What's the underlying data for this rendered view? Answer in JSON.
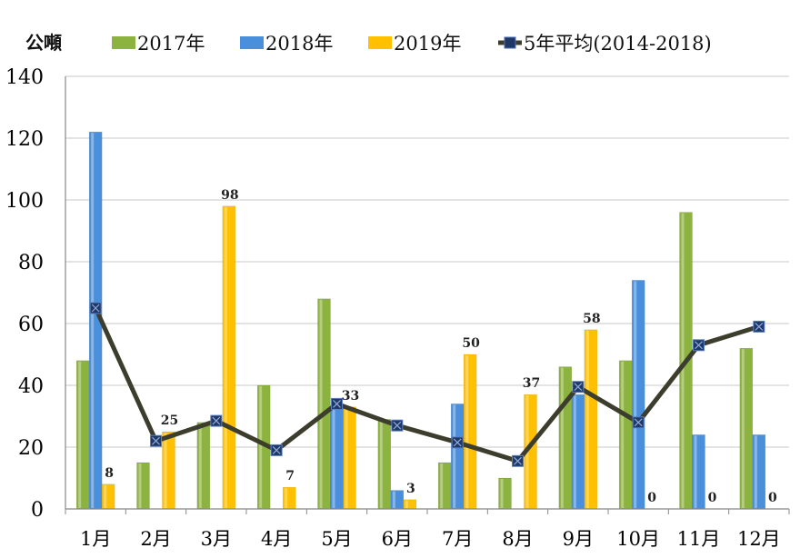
{
  "chart_data": {
    "type": "bar",
    "unit_label": "公噸",
    "categories": [
      "1月",
      "2月",
      "3月",
      "4月",
      "5月",
      "6月",
      "7月",
      "8月",
      "9月",
      "10月",
      "11月",
      "12月"
    ],
    "ylim": [
      0,
      140
    ],
    "yticks": [
      0,
      20,
      40,
      60,
      80,
      100,
      120,
      140
    ],
    "grid": true,
    "legend_position": "top",
    "series": [
      {
        "name": "2017年",
        "kind": "bar",
        "color": "#8cb23f",
        "values": [
          48,
          15,
          28,
          40,
          68,
          29,
          15,
          10,
          46,
          48,
          96,
          52
        ]
      },
      {
        "name": "2018年",
        "kind": "bar",
        "color": "#4a8fdc",
        "values": [
          122,
          0,
          0,
          0,
          33,
          6,
          34,
          0,
          37,
          74,
          24,
          24
        ]
      },
      {
        "name": "2019年",
        "kind": "bar",
        "color": "#ffc000",
        "values": [
          8,
          25,
          98,
          7,
          33,
          3,
          50,
          37,
          58,
          0,
          0,
          0
        ]
      },
      {
        "name": "5年平均(2014-2018)",
        "kind": "line",
        "color": "#3d3d2e",
        "marker_color": "#1f3864",
        "values": [
          65,
          22,
          28.5,
          19,
          34,
          27,
          21.5,
          15.5,
          39.5,
          28,
          53,
          59
        ]
      }
    ],
    "data_labels": {
      "series": "2019年",
      "values": [
        "8",
        "25",
        "98",
        "7",
        "33",
        "3",
        "50",
        "37",
        "58",
        "0",
        "0",
        "0"
      ]
    }
  }
}
